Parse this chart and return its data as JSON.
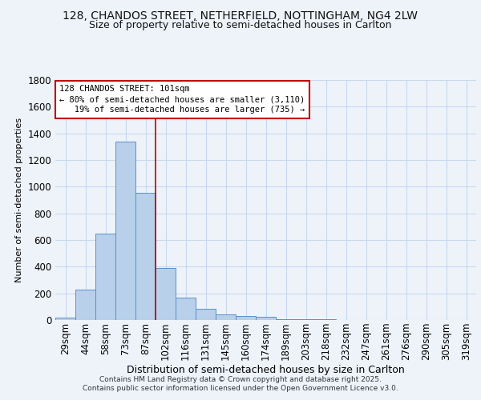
{
  "title_line1": "128, CHANDOS STREET, NETHERFIELD, NOTTINGHAM, NG4 2LW",
  "title_line2": "Size of property relative to semi-detached houses in Carlton",
  "xlabel": "Distribution of semi-detached houses by size in Carlton",
  "ylabel": "Number of semi-detached properties",
  "bar_labels": [
    "29sqm",
    "44sqm",
    "58sqm",
    "73sqm",
    "87sqm",
    "102sqm",
    "116sqm",
    "131sqm",
    "145sqm",
    "160sqm",
    "174sqm",
    "189sqm",
    "203sqm",
    "218sqm",
    "232sqm",
    "247sqm",
    "261sqm",
    "276sqm",
    "290sqm",
    "305sqm",
    "319sqm"
  ],
  "bar_values": [
    20,
    230,
    650,
    1340,
    955,
    390,
    170,
    85,
    45,
    30,
    22,
    8,
    5,
    4,
    2,
    2,
    1,
    1,
    0,
    0,
    0
  ],
  "bar_color": "#b8d0ea",
  "bar_edge_color": "#5b8fcc",
  "property_line_color": "#c00000",
  "annotation_text_line1": "128 CHANDOS STREET: 101sqm",
  "annotation_text_line2": "← 80% of semi-detached houses are smaller (3,110)",
  "annotation_text_line3": "   19% of semi-detached houses are larger (735) →",
  "annotation_box_color": "#ffffff",
  "annotation_box_edge": "#c00000",
  "ylim": [
    0,
    1800
  ],
  "yticks": [
    0,
    200,
    400,
    600,
    800,
    1000,
    1200,
    1400,
    1600,
    1800
  ],
  "grid_color": "#c8d8ee",
  "background_color": "#eef3fa",
  "footer_line1": "Contains HM Land Registry data © Crown copyright and database right 2025.",
  "footer_line2": "Contains public sector information licensed under the Open Government Licence v3.0."
}
